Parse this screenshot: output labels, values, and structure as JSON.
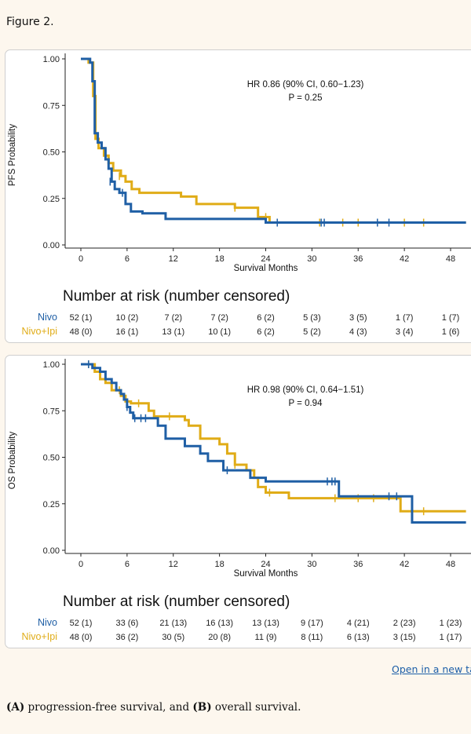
{
  "figure_label": "Figure 2.",
  "link_text": "Open in a new tab",
  "caption": {
    "a_tag": "(A)",
    "a_text": " progression-free survival, and ",
    "b_tag": "(B)",
    "b_text": " overall survival."
  },
  "colors": {
    "nivo": "#1f5fa5",
    "nivo_ipi": "#e0ac17",
    "axis": "#222222",
    "grid": "#bbbbbb"
  },
  "chart_data": [
    {
      "type": "line",
      "panel": "A",
      "ylabel": "PFS Probability",
      "xlabel": "Survival Months",
      "xlim": [
        0,
        50
      ],
      "ylim": [
        0,
        1
      ],
      "xticks": [
        0,
        6,
        12,
        18,
        24,
        30,
        36,
        42,
        48
      ],
      "yticks": [
        "0.00",
        "0.25",
        "0.50",
        "0.75",
        "1.00"
      ],
      "annotation": [
        "HR 0.86 (90% CI, 0.60−1.23)",
        "P = 0.25"
      ],
      "risk_title": "Number at risk (number censored)",
      "series": [
        {
          "name": "Nivo",
          "risk": [
            "52 (1)",
            "10 (2)",
            "7 (2)",
            "7 (2)",
            "6 (2)",
            "5 (3)",
            "3 (5)",
            "1 (7)",
            "1 (7)"
          ],
          "steps": [
            [
              0,
              1.0
            ],
            [
              1.2,
              0.98
            ],
            [
              1.5,
              0.88
            ],
            [
              1.8,
              0.6
            ],
            [
              2.2,
              0.55
            ],
            [
              2.7,
              0.52
            ],
            [
              3.2,
              0.46
            ],
            [
              3.6,
              0.41
            ],
            [
              4.0,
              0.34
            ],
            [
              4.4,
              0.3
            ],
            [
              5.0,
              0.28
            ],
            [
              5.8,
              0.22
            ],
            [
              6.5,
              0.18
            ],
            [
              8.0,
              0.17
            ],
            [
              11.0,
              0.14
            ],
            [
              16.0,
              0.14
            ],
            [
              24.0,
              0.12
            ],
            [
              50,
              0.12
            ]
          ],
          "censors": [
            [
              3.8,
              0.34
            ],
            [
              5.4,
              0.28
            ],
            [
              25.5,
              0.12
            ],
            [
              31.2,
              0.12
            ],
            [
              31.6,
              0.12
            ],
            [
              38.5,
              0.12
            ],
            [
              40.0,
              0.12
            ]
          ]
        },
        {
          "name": "Nivo+Ipi",
          "risk": [
            "48 (0)",
            "16 (1)",
            "13 (1)",
            "10 (1)",
            "6 (2)",
            "5 (2)",
            "4 (3)",
            "3 (4)",
            "1 (6)"
          ],
          "steps": [
            [
              0,
              1.0
            ],
            [
              1.0,
              0.98
            ],
            [
              1.6,
              0.8
            ],
            [
              1.9,
              0.57
            ],
            [
              2.3,
              0.52
            ],
            [
              3.0,
              0.48
            ],
            [
              3.6,
              0.44
            ],
            [
              4.2,
              0.4
            ],
            [
              5.2,
              0.37
            ],
            [
              5.8,
              0.34
            ],
            [
              6.6,
              0.3
            ],
            [
              7.6,
              0.28
            ],
            [
              13.0,
              0.26
            ],
            [
              15.0,
              0.22
            ],
            [
              20.0,
              0.2
            ],
            [
              23.0,
              0.15
            ],
            [
              24.5,
              0.12
            ],
            [
              50,
              0.12
            ]
          ],
          "censors": [
            [
              5.0,
              0.37
            ],
            [
              20.0,
              0.2
            ],
            [
              24.0,
              0.15
            ],
            [
              31.0,
              0.12
            ],
            [
              34.0,
              0.12
            ],
            [
              36.0,
              0.12
            ],
            [
              42.0,
              0.12
            ],
            [
              44.5,
              0.12
            ]
          ]
        }
      ]
    },
    {
      "type": "line",
      "panel": "B",
      "ylabel": "OS Probability",
      "xlabel": "Survival Months",
      "xlim": [
        0,
        50
      ],
      "ylim": [
        0,
        1
      ],
      "xticks": [
        0,
        6,
        12,
        18,
        24,
        30,
        36,
        42,
        48
      ],
      "yticks": [
        "0.00",
        "0.25",
        "0.50",
        "0.75",
        "1.00"
      ],
      "annotation": [
        "HR 0.98 (90% CI, 0.64−1.51)",
        "P = 0.94"
      ],
      "risk_title": "Number at risk (number censored)",
      "series": [
        {
          "name": "Nivo",
          "risk": [
            "52 (1)",
            "33 (6)",
            "21 (13)",
            "16 (13)",
            "13 (13)",
            "9 (17)",
            "4 (21)",
            "2 (23)",
            "1 (23)"
          ],
          "steps": [
            [
              0,
              1.0
            ],
            [
              1.5,
              0.98
            ],
            [
              2.5,
              0.96
            ],
            [
              3.2,
              0.92
            ],
            [
              4.0,
              0.9
            ],
            [
              4.6,
              0.86
            ],
            [
              5.2,
              0.84
            ],
            [
              5.6,
              0.81
            ],
            [
              6.0,
              0.77
            ],
            [
              6.4,
              0.74
            ],
            [
              6.8,
              0.71
            ],
            [
              10.0,
              0.67
            ],
            [
              11.0,
              0.6
            ],
            [
              13.5,
              0.56
            ],
            [
              15.5,
              0.52
            ],
            [
              16.5,
              0.48
            ],
            [
              18.5,
              0.43
            ],
            [
              22.0,
              0.39
            ],
            [
              24.0,
              0.37
            ],
            [
              33.5,
              0.29
            ],
            [
              43.0,
              0.15
            ],
            [
              50,
              0.15
            ]
          ],
          "censors": [
            [
              1.0,
              1.0
            ],
            [
              6.0,
              0.77
            ],
            [
              7.0,
              0.71
            ],
            [
              7.8,
              0.71
            ],
            [
              8.4,
              0.71
            ],
            [
              19.0,
              0.43
            ],
            [
              32.0,
              0.37
            ],
            [
              32.6,
              0.37
            ],
            [
              33.0,
              0.37
            ],
            [
              40.0,
              0.29
            ],
            [
              41.0,
              0.29
            ]
          ]
        },
        {
          "name": "Nivo+Ipi",
          "risk": [
            "48 (0)",
            "36 (2)",
            "30 (5)",
            "20 (8)",
            "11 (9)",
            "8 (11)",
            "6 (13)",
            "3 (15)",
            "1 (17)"
          ],
          "steps": [
            [
              0,
              1.0
            ],
            [
              1.8,
              0.96
            ],
            [
              2.5,
              0.92
            ],
            [
              3.2,
              0.9
            ],
            [
              4.0,
              0.86
            ],
            [
              5.2,
              0.83
            ],
            [
              5.8,
              0.8
            ],
            [
              6.5,
              0.79
            ],
            [
              8.8,
              0.75
            ],
            [
              9.5,
              0.72
            ],
            [
              13.5,
              0.7
            ],
            [
              14.0,
              0.67
            ],
            [
              15.5,
              0.6
            ],
            [
              18.0,
              0.57
            ],
            [
              19.0,
              0.52
            ],
            [
              20.0,
              0.46
            ],
            [
              21.5,
              0.43
            ],
            [
              22.5,
              0.39
            ],
            [
              23.0,
              0.34
            ],
            [
              24.0,
              0.31
            ],
            [
              27.0,
              0.28
            ],
            [
              41.5,
              0.21
            ],
            [
              50,
              0.21
            ]
          ],
          "censors": [
            [
              1.0,
              1.0
            ],
            [
              5.0,
              0.86
            ],
            [
              7.5,
              0.79
            ],
            [
              11.5,
              0.72
            ],
            [
              20.0,
              0.46
            ],
            [
              24.5,
              0.31
            ],
            [
              33.0,
              0.28
            ],
            [
              36.0,
              0.28
            ],
            [
              38.0,
              0.28
            ],
            [
              44.5,
              0.21
            ]
          ]
        }
      ]
    }
  ]
}
